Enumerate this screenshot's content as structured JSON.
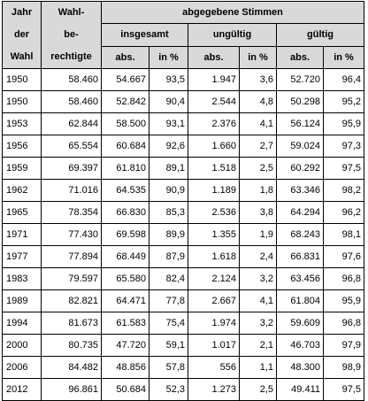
{
  "header": {
    "year": [
      "Jahr",
      "der",
      "Wahl"
    ],
    "eligible": [
      "Wahl-",
      "be-",
      "rechtigte"
    ],
    "votes_cast": "abgegebene Stimmen",
    "groups": [
      "insgesamt",
      "ungültig",
      "gültig"
    ],
    "sub": [
      "abs.",
      "in %",
      "abs.",
      "in %",
      "abs.",
      "in %"
    ]
  },
  "rows": [
    [
      "1950",
      "58.460",
      "54.667",
      "93,5",
      "1.947",
      "3,6",
      "52.720",
      "96,4"
    ],
    [
      "1950",
      "58.460",
      "52.842",
      "90,4",
      "2.544",
      "4,8",
      "50.298",
      "95,2"
    ],
    [
      "1953",
      "62.844",
      "58.500",
      "93,1",
      "2.376",
      "4,1",
      "56.124",
      "95,9"
    ],
    [
      "1956",
      "65.554",
      "60.684",
      "92,6",
      "1.660",
      "2,7",
      "59.024",
      "97,3"
    ],
    [
      "1959",
      "69.397",
      "61.810",
      "89,1",
      "1.518",
      "2,5",
      "60.292",
      "97,5"
    ],
    [
      "1962",
      "71.016",
      "64.535",
      "90,9",
      "1.189",
      "1,8",
      "63.346",
      "98,2"
    ],
    [
      "1965",
      "78.354",
      "66.830",
      "85,3",
      "2.536",
      "3,8",
      "64.294",
      "96,2"
    ],
    [
      "1971",
      "77.430",
      "69.598",
      "89,9",
      "1.355",
      "1,9",
      "68.243",
      "98,1"
    ],
    [
      "1977",
      "77.894",
      "68.449",
      "87,9",
      "1.618",
      "2,4",
      "66.831",
      "97,6"
    ],
    [
      "1983",
      "79.597",
      "65.580",
      "82,4",
      "2.124",
      "3,2",
      "63.456",
      "96,8"
    ],
    [
      "1989",
      "82.821",
      "64.471",
      "77,8",
      "2.667",
      "4,1",
      "61.804",
      "95,9"
    ],
    [
      "1994",
      "81.673",
      "61.583",
      "75,4",
      "1.974",
      "3,2",
      "59.609",
      "96,8"
    ],
    [
      "2000",
      "80.735",
      "47.720",
      "59,1",
      "1.017",
      "2,1",
      "46.703",
      "97,9"
    ],
    [
      "2006",
      "84.482",
      "48.856",
      "57,8",
      "556",
      "1,1",
      "48.300",
      "98,9"
    ],
    [
      "2012",
      "96.861",
      "50.684",
      "52,3",
      "1.273",
      "2,5",
      "49.411",
      "97,5"
    ]
  ]
}
